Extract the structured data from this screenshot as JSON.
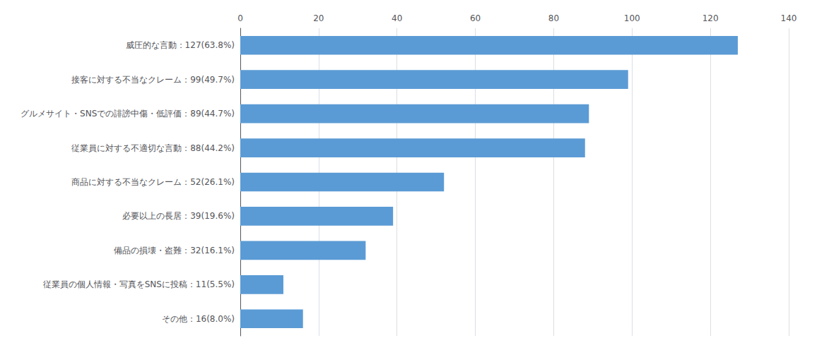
{
  "chart_data": {
    "type": "bar",
    "orientation": "horizontal",
    "categories": [
      "威圧的な言動：127(63.8%)",
      "接客に対する不当なクレーム：99(49.7%)",
      "グルメサイト・SNSでの誹謗中傷・低評価：89(44.7%)",
      "従業員に対する不適切な言動：88(44.2%)",
      "商品に対する不当なクレーム：52(26.1%)",
      "必要以上の長居：39(19.6%)",
      "備品の損壊・盗難：32(16.1%)",
      "従業員の個人情報・写真をSNSに投稿：11(5.5%)",
      "その他：16(8.0%)"
    ],
    "values": [
      127,
      99,
      89,
      88,
      52,
      39,
      32,
      11,
      16
    ],
    "color": "#5B9BD5",
    "xlim": [
      0,
      140
    ],
    "xticks": [
      0,
      20,
      40,
      60,
      80,
      100,
      120,
      140
    ],
    "grid": true
  }
}
